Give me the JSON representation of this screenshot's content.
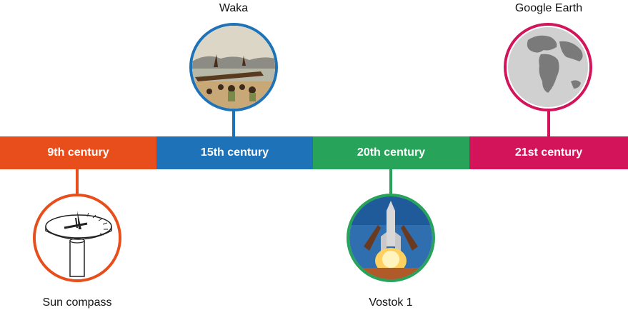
{
  "colors": {
    "orange": "#e84e1b",
    "blue": "#1d72b8",
    "green": "#27a35a",
    "crimson": "#d4145a"
  },
  "timeline": {
    "segments": [
      {
        "label": "9th century"
      },
      {
        "label": "15th century"
      },
      {
        "label": "20th century"
      },
      {
        "label": "21st century"
      }
    ]
  },
  "items": {
    "sun_compass": {
      "caption": "Sun compass",
      "icon": "sun-compass-illustration"
    },
    "waka": {
      "caption": "Waka",
      "icon": "waka-painting"
    },
    "vostok": {
      "caption": "Vostok 1",
      "icon": "rocket-launch-photo"
    },
    "google_earth": {
      "caption": "Google Earth",
      "icon": "globe-image"
    }
  }
}
